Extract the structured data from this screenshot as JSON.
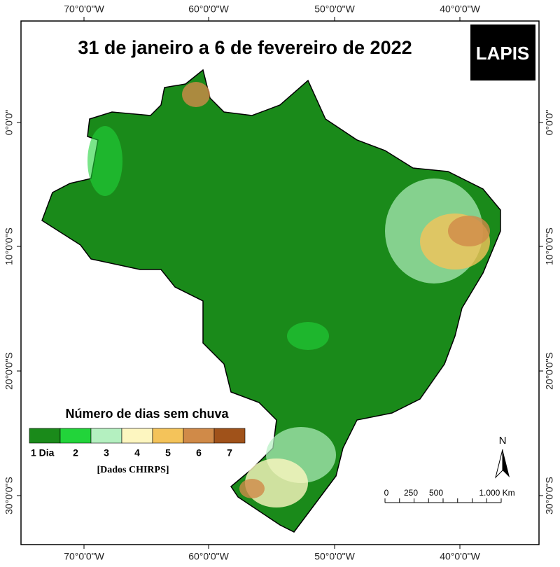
{
  "title": "31 de janeiro a 6 de fevereiro de 2022",
  "logo": "LAPIS",
  "longitude_labels": [
    "70°0'0\"W",
    "60°0'0\"W",
    "50°0'0\"W",
    "40°0'0\"W"
  ],
  "latitude_labels": [
    "0°0'0\"",
    "10°0'0\"S",
    "20°0'0\"S",
    "30°0'0\"S"
  ],
  "legend": {
    "title": "Número de dias sem chuva",
    "items": [
      {
        "label": "1 Dia",
        "color": "#1a8a1a"
      },
      {
        "label": "2",
        "color": "#22d43a"
      },
      {
        "label": "3",
        "color": "#b4f0c0"
      },
      {
        "label": "4",
        "color": "#fdf6c0"
      },
      {
        "label": "5",
        "color": "#f4c35a"
      },
      {
        "label": "6",
        "color": "#d08a48"
      },
      {
        "label": "7",
        "color": "#a0521a"
      }
    ],
    "source": "[Dados CHIRPS]"
  },
  "scale_bar": {
    "labels": [
      "0",
      "250",
      "500",
      "1.000 Km"
    ]
  },
  "north": "N"
}
